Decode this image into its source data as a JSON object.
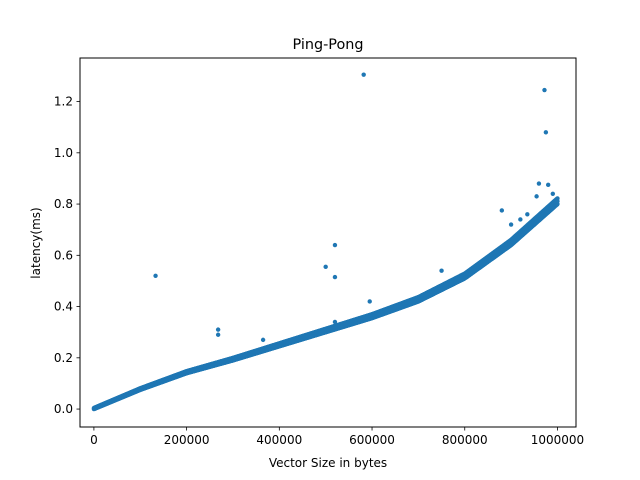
{
  "chart_data": {
    "type": "scatter",
    "title": "Ping-Pong",
    "xlabel": "Vector Size in bytes",
    "ylabel": "latency(ms)",
    "xlim": [
      -30000,
      1040000
    ],
    "ylim": [
      -0.07,
      1.37
    ],
    "xticks": [
      0,
      200000,
      400000,
      600000,
      800000,
      1000000
    ],
    "xtick_labels": [
      "0",
      "200000",
      "400000",
      "600000",
      "800000",
      "1000000"
    ],
    "yticks": [
      0.0,
      0.2,
      0.4,
      0.6,
      0.8,
      1.0,
      1.2
    ],
    "ytick_labels": [
      "0.0",
      "0.2",
      "0.4",
      "0.6",
      "0.8",
      "1.0",
      "1.2"
    ],
    "grid": false,
    "marker_color": "#1f77b4",
    "curve_points": [
      {
        "x": 0,
        "y": 0.0
      },
      {
        "x": 100000,
        "y": 0.075
      },
      {
        "x": 200000,
        "y": 0.14
      },
      {
        "x": 300000,
        "y": 0.19
      },
      {
        "x": 400000,
        "y": 0.245
      },
      {
        "x": 500000,
        "y": 0.3
      },
      {
        "x": 600000,
        "y": 0.355
      },
      {
        "x": 700000,
        "y": 0.42
      },
      {
        "x": 800000,
        "y": 0.51
      },
      {
        "x": 900000,
        "y": 0.64
      },
      {
        "x": 1000000,
        "y": 0.8
      }
    ],
    "outliers": [
      {
        "x": 133000,
        "y": 0.52
      },
      {
        "x": 268000,
        "y": 0.31
      },
      {
        "x": 268000,
        "y": 0.29
      },
      {
        "x": 365000,
        "y": 0.27
      },
      {
        "x": 500000,
        "y": 0.555
      },
      {
        "x": 520000,
        "y": 0.64
      },
      {
        "x": 520000,
        "y": 0.515
      },
      {
        "x": 520000,
        "y": 0.34
      },
      {
        "x": 582000,
        "y": 1.305
      },
      {
        "x": 595000,
        "y": 0.42
      },
      {
        "x": 750000,
        "y": 0.54
      },
      {
        "x": 880000,
        "y": 0.775
      },
      {
        "x": 900000,
        "y": 0.72
      },
      {
        "x": 920000,
        "y": 0.74
      },
      {
        "x": 935000,
        "y": 0.76
      },
      {
        "x": 960000,
        "y": 0.88
      },
      {
        "x": 972000,
        "y": 1.245
      },
      {
        "x": 975000,
        "y": 1.08
      },
      {
        "x": 980000,
        "y": 0.875
      },
      {
        "x": 955000,
        "y": 0.83
      },
      {
        "x": 990000,
        "y": 0.84
      }
    ]
  }
}
